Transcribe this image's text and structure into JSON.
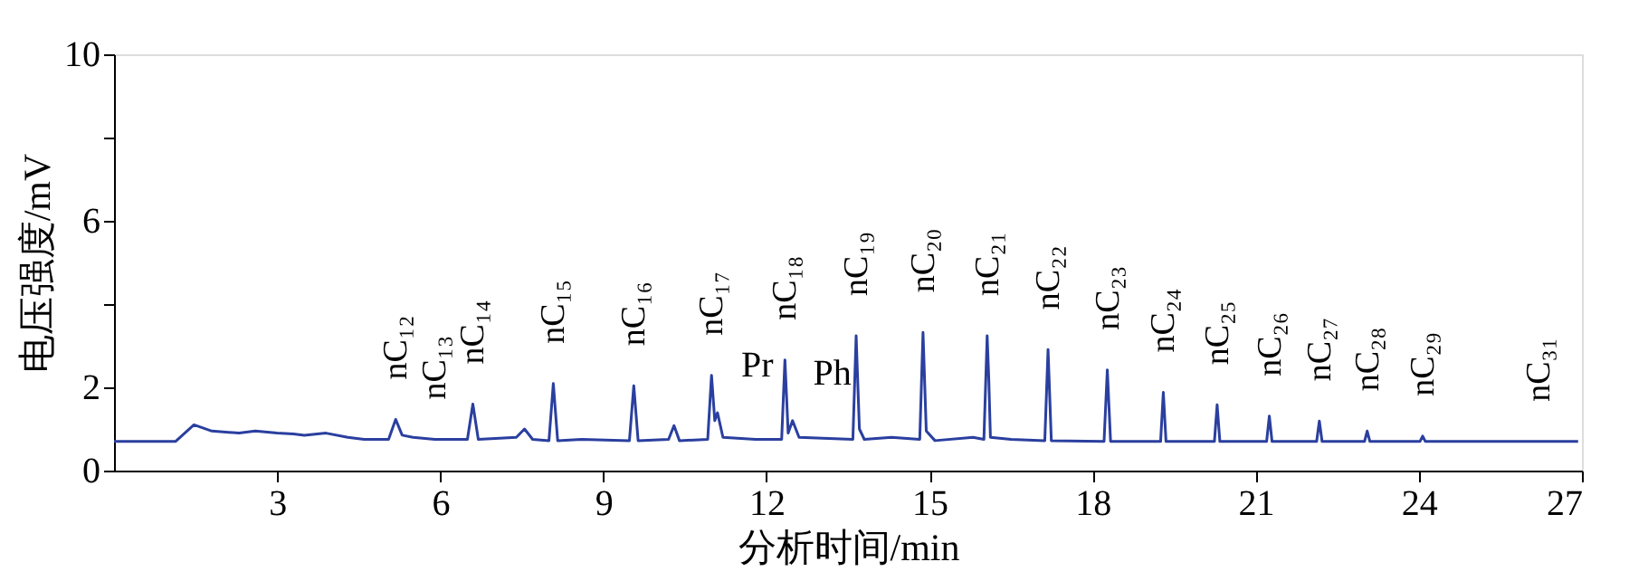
{
  "chart_data": {
    "type": "line",
    "xlabel": "分析时间/min",
    "ylabel": "电压强度/mV",
    "xlim": [
      0,
      27
    ],
    "xticks": [
      3,
      6,
      9,
      12,
      15,
      18,
      21,
      24,
      27
    ],
    "ylim": [
      0,
      10
    ],
    "yticks": [
      0,
      2,
      {
        "value": 4,
        "label": null
      },
      6,
      {
        "value": 8,
        "label": null
      },
      10
    ],
    "grid": false,
    "marker": "none",
    "line_style": "solid",
    "series": [
      {
        "color": "#2a3f9f",
        "x": [
          0,
          1.13,
          1.47,
          1.8,
          2.3,
          2.6,
          3.0,
          3.3,
          3.5,
          3.9,
          4.3,
          4.6,
          5.05,
          5.18,
          5.3,
          5.5,
          5.9,
          6.5,
          6.6,
          6.7,
          7.4,
          7.55,
          7.7,
          8.0,
          8.08,
          8.16,
          8.6,
          9.48,
          9.56,
          9.64,
          10.2,
          10.3,
          10.4,
          10.92,
          10.99,
          11.05,
          11.1,
          11.2,
          11.8,
          12.28,
          12.34,
          12.4,
          12.48,
          12.6,
          13.59,
          13.65,
          13.71,
          13.8,
          14.3,
          14.82,
          14.88,
          14.94,
          15.1,
          15.8,
          16.0,
          16.06,
          16.09,
          16.12,
          16.5,
          17.12,
          17.18,
          17.24,
          18.21,
          18.27,
          18.33,
          19.25,
          19.3,
          19.35,
          20.24,
          20.29,
          20.34,
          21.2,
          21.25,
          21.3,
          22.12,
          22.17,
          22.22,
          23.0,
          23.05,
          23.1,
          24.02,
          24.07,
          24.12,
          26.93
        ],
        "values": [
          0.7,
          0.7,
          1.1,
          0.95,
          0.9,
          0.95,
          0.9,
          0.88,
          0.85,
          0.9,
          0.8,
          0.75,
          0.75,
          1.23,
          0.85,
          0.8,
          0.75,
          0.75,
          1.6,
          0.75,
          0.8,
          1.0,
          0.75,
          0.72,
          2.09,
          0.72,
          0.75,
          0.72,
          2.04,
          0.72,
          0.75,
          1.08,
          0.72,
          0.75,
          2.29,
          1.2,
          1.39,
          0.8,
          0.75,
          0.75,
          2.66,
          0.9,
          1.2,
          0.8,
          0.75,
          3.24,
          1.0,
          0.75,
          0.8,
          0.75,
          3.32,
          0.95,
          0.72,
          0.8,
          0.75,
          3.24,
          2.2,
          0.8,
          0.75,
          0.72,
          2.91,
          0.72,
          0.7,
          2.42,
          0.7,
          0.7,
          1.88,
          0.7,
          0.7,
          1.58,
          0.7,
          0.7,
          1.31,
          0.7,
          0.7,
          1.19,
          0.7,
          0.7,
          0.95,
          0.7,
          0.7,
          0.83,
          0.7,
          0.7
        ]
      }
    ],
    "annotations": [
      {
        "text": "nC₁₂",
        "x": 5.18,
        "y": 1.23
      },
      {
        "text": "nC₁₃",
        "x": 5.9,
        "y": 0.75
      },
      {
        "text": "nC₁₄",
        "x": 6.6,
        "y": 1.6
      },
      {
        "text": "nC₁₅",
        "x": 8.08,
        "y": 2.09
      },
      {
        "text": "nC₁₆",
        "x": 9.56,
        "y": 2.04
      },
      {
        "text": "nC₁₇",
        "x": 10.99,
        "y": 2.29
      },
      {
        "text": "Pr",
        "x": 11.1,
        "y": 1.39
      },
      {
        "text": "nC₁₈",
        "x": 12.34,
        "y": 2.66
      },
      {
        "text": "Ph",
        "x": 12.48,
        "y": 1.2
      },
      {
        "text": "nC₁₉",
        "x": 13.65,
        "y": 3.24
      },
      {
        "text": "nC₂₀",
        "x": 14.88,
        "y": 3.32
      },
      {
        "text": "nC₂₁",
        "x": 16.06,
        "y": 3.24
      },
      {
        "text": "nC₂₂",
        "x": 17.18,
        "y": 2.91
      },
      {
        "text": "nC₂₃",
        "x": 18.27,
        "y": 2.42
      },
      {
        "text": "nC₂₄",
        "x": 19.3,
        "y": 1.88
      },
      {
        "text": "nC₂₅",
        "x": 20.29,
        "y": 1.58
      },
      {
        "text": "nC₂₆",
        "x": 21.25,
        "y": 1.31
      },
      {
        "text": "nC₂₇",
        "x": 22.17,
        "y": 1.19
      },
      {
        "text": "nC₂₈",
        "x": 23.05,
        "y": 0.95
      },
      {
        "text": "nC₂₉",
        "x": 24.07,
        "y": 0.83
      },
      {
        "text": "nC₃₁",
        "x": 26.2,
        "y": 0.7
      }
    ]
  }
}
